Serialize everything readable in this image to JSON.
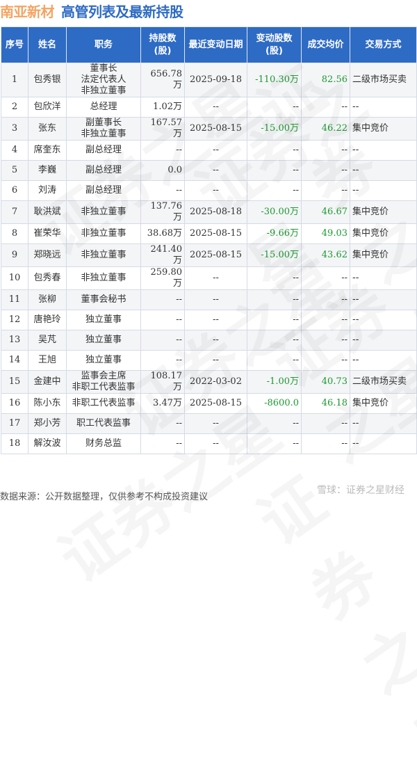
{
  "title": {
    "company": "南亚新材",
    "subtitle": "高管列表及最新持股"
  },
  "columns": [
    "序号",
    "姓名",
    "职务",
    "持股数\n(股)",
    "最近变动日期",
    "变动股数\n(股)",
    "成交均价",
    "交易方式"
  ],
  "rows": [
    [
      "1",
      "包秀银",
      "董事长\n法定代表人\n非独立董事",
      "656.78万",
      "2025-09-18",
      "-110.30万",
      "82.56",
      "二级市场买卖"
    ],
    [
      "2",
      "包欣洋",
      "总经理",
      "1.02万",
      "--",
      "--",
      "--",
      "--"
    ],
    [
      "3",
      "张东",
      "副董事长\n非独立董事",
      "167.57万",
      "2025-08-15",
      "-15.00万",
      "46.22",
      "集中竞价"
    ],
    [
      "4",
      "席奎东",
      "副总经理",
      "--",
      "--",
      "--",
      "--",
      "--"
    ],
    [
      "5",
      "李巍",
      "副总经理",
      "0.0",
      "--",
      "--",
      "--",
      "--"
    ],
    [
      "6",
      "刘涛",
      "副总经理",
      "--",
      "--",
      "--",
      "--",
      "--"
    ],
    [
      "7",
      "耿洪斌",
      "非独立董事",
      "137.76万",
      "2025-08-18",
      "-30.00万",
      "46.67",
      "集中竞价"
    ],
    [
      "8",
      "崔荣华",
      "非独立董事",
      "38.68万",
      "2025-08-15",
      "-9.66万",
      "49.03",
      "集中竞价"
    ],
    [
      "9",
      "郑晓远",
      "非独立董事",
      "241.40万",
      "2025-08-15",
      "-15.00万",
      "43.62",
      "集中竞价"
    ],
    [
      "10",
      "包秀春",
      "非独立董事",
      "259.80万",
      "--",
      "--",
      "--",
      "--"
    ],
    [
      "11",
      "张柳",
      "董事会秘书",
      "--",
      "--",
      "--",
      "--",
      "--"
    ],
    [
      "12",
      "唐艳玲",
      "独立董事",
      "--",
      "--",
      "--",
      "--",
      "--"
    ],
    [
      "13",
      "吴芃",
      "独立董事",
      "--",
      "--",
      "--",
      "--",
      "--"
    ],
    [
      "14",
      "王旭",
      "独立董事",
      "--",
      "--",
      "--",
      "--",
      "--"
    ],
    [
      "15",
      "金建中",
      "监事会主席\n非职工代表监事",
      "108.17万",
      "2022-03-02",
      "-1.00万",
      "40.73",
      "二级市场买卖"
    ],
    [
      "16",
      "陈小东",
      "非职工代表监事",
      "3.47万",
      "2025-08-15",
      "-8600.0",
      "46.18",
      "集中竞价"
    ],
    [
      "17",
      "郑小芳",
      "职工代表监事",
      "--",
      "--",
      "--",
      "--",
      "--"
    ],
    [
      "18",
      "解汝波",
      "财务总监",
      "--",
      "--",
      "--",
      "--",
      "--"
    ]
  ],
  "footer": {
    "source": "数据来源：公开数据整理，仅供参考不构成投资建议",
    "logo": "雪球：证券之星财经"
  },
  "watermark": "证券之星",
  "colors": {
    "header_bg": "#2e6bc4",
    "company": "#f4a462",
    "subtitle": "#2e6bc4",
    "negative_change": "#1b9a2f"
  }
}
